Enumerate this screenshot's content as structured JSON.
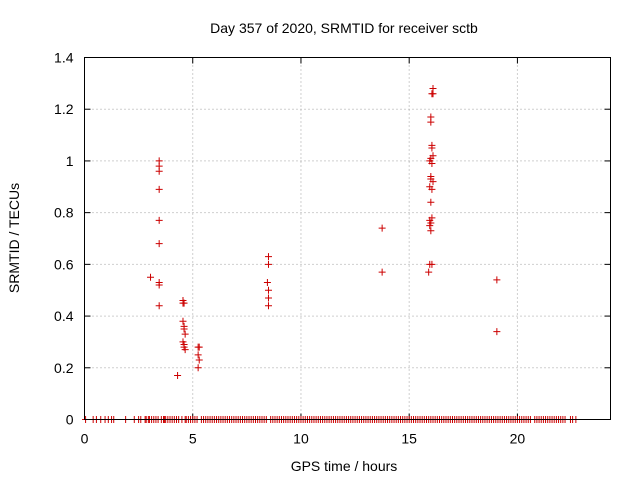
{
  "chart_data": {
    "type": "scatter",
    "title": "Day 357 of 2020, SRMTID for receiver sctb",
    "xlabel": "GPS time / hours",
    "ylabel": "SRMTID / TECUs",
    "xlim": [
      0,
      24.3
    ],
    "ylim": [
      0,
      1.4
    ],
    "x_ticks": [
      0,
      5,
      10,
      15,
      20
    ],
    "y_ticks": [
      0,
      0.2,
      0.4,
      0.6,
      0.8,
      1,
      1.2,
      1.4
    ],
    "x_tick_labels": [
      "0",
      "5",
      "10",
      "15",
      "20"
    ],
    "y_tick_labels": [
      "0",
      "0.2",
      "0.4",
      "0.6",
      "0.8",
      "1",
      "1.2",
      "1.4"
    ],
    "grid": true,
    "marker": "+",
    "color": "#cc0000",
    "series": [
      {
        "name": "SRMTID",
        "x": [
          3.45,
          3.45,
          3.45,
          3.45,
          3.45,
          3.45,
          3.05,
          3.45,
          3.45,
          3.45,
          4.55,
          4.6,
          4.55,
          4.55,
          4.6,
          4.6,
          4.65,
          4.55,
          4.6,
          4.6,
          4.65,
          4.3,
          5.25,
          5.3,
          5.25,
          5.3,
          5.25,
          8.5,
          8.5,
          8.45,
          8.5,
          8.5,
          8.5,
          13.75,
          13.75,
          16.1,
          16.05,
          16.1,
          16.0,
          16.0,
          16.05,
          16.05,
          16.1,
          16.0,
          15.95,
          16.05,
          16.0,
          16.0,
          16.1,
          15.95,
          16.05,
          16.0,
          16.05,
          15.95,
          16.0,
          15.95,
          16.0,
          16.05,
          15.95,
          15.9,
          19.05,
          19.05
        ],
        "y": [
          1.0,
          0.98,
          0.96,
          0.89,
          0.77,
          0.68,
          0.55,
          0.53,
          0.52,
          0.44,
          0.46,
          0.45,
          0.45,
          0.38,
          0.36,
          0.35,
          0.33,
          0.3,
          0.29,
          0.28,
          0.27,
          0.17,
          0.28,
          0.28,
          0.25,
          0.23,
          0.2,
          0.63,
          0.6,
          0.53,
          0.5,
          0.47,
          0.44,
          0.74,
          0.57,
          1.28,
          1.26,
          1.26,
          1.17,
          1.15,
          1.06,
          1.05,
          1.02,
          1.01,
          1.0,
          0.99,
          0.94,
          0.93,
          0.92,
          0.9,
          0.89,
          0.84,
          0.78,
          0.77,
          0.76,
          0.75,
          0.73,
          0.6,
          0.6,
          0.57,
          0.54,
          0.34
        ],
        "zero_x": [
          0.05,
          0.4,
          0.55,
          0.75,
          0.95,
          1.1,
          1.25,
          1.35,
          1.9,
          2.3,
          2.5,
          2.6,
          2.8,
          2.85,
          2.95,
          3.0,
          3.1,
          3.2,
          3.3,
          3.4,
          3.55,
          3.65,
          3.7,
          3.75,
          3.85,
          3.95,
          4.05,
          4.15,
          4.25,
          4.35,
          4.5,
          4.65,
          4.7,
          4.8,
          4.9,
          5.0,
          5.1,
          5.2,
          5.4,
          5.5,
          5.6,
          5.7,
          5.8,
          5.9,
          6.0,
          6.1,
          6.2,
          6.3,
          6.4,
          6.5,
          6.6,
          6.7,
          6.8,
          6.9,
          7.0,
          7.1,
          7.2,
          7.3,
          7.4,
          7.5,
          7.6,
          7.7,
          7.8,
          7.9,
          8.0,
          8.1,
          8.2,
          8.3,
          8.4,
          8.6,
          8.7,
          8.8,
          8.9,
          9.0,
          9.1,
          9.2,
          9.3,
          9.4,
          9.5,
          9.6,
          9.7,
          9.8,
          9.9,
          10.0,
          10.1,
          10.2,
          10.3,
          10.4,
          10.5,
          10.6,
          10.7,
          10.8,
          10.9,
          11.0,
          11.1,
          11.2,
          11.3,
          11.4,
          11.5,
          11.6,
          11.7,
          11.8,
          11.9,
          12.0,
          12.1,
          12.2,
          12.3,
          12.4,
          12.5,
          12.6,
          12.7,
          12.8,
          12.9,
          13.0,
          13.1,
          13.2,
          13.3,
          13.4,
          13.5,
          13.6,
          13.7,
          13.8,
          13.9,
          14.0,
          14.1,
          14.2,
          14.3,
          14.4,
          14.5,
          14.6,
          14.7,
          14.8,
          14.9,
          15.0,
          15.1,
          15.2,
          15.3,
          15.4,
          15.5,
          15.6,
          15.7,
          15.8,
          15.9,
          16.0,
          16.1,
          16.2,
          16.3,
          16.4,
          16.5,
          16.6,
          16.7,
          16.8,
          16.9,
          17.0,
          17.1,
          17.2,
          17.3,
          17.4,
          17.5,
          17.6,
          17.7,
          17.8,
          17.9,
          18.0,
          18.1,
          18.2,
          18.3,
          18.4,
          18.5,
          18.6,
          18.7,
          18.8,
          18.9,
          19.0,
          19.1,
          19.2,
          19.3,
          19.4,
          19.5,
          19.6,
          19.7,
          19.8,
          19.9,
          20.0,
          20.1,
          20.2,
          20.3,
          20.4,
          20.5,
          20.6,
          20.8,
          20.9,
          21.0,
          21.1,
          21.2,
          21.3,
          21.4,
          21.5,
          21.6,
          21.7,
          21.8,
          21.9,
          22.0,
          22.1,
          22.2,
          22.45,
          22.55,
          22.7
        ]
      }
    ]
  }
}
